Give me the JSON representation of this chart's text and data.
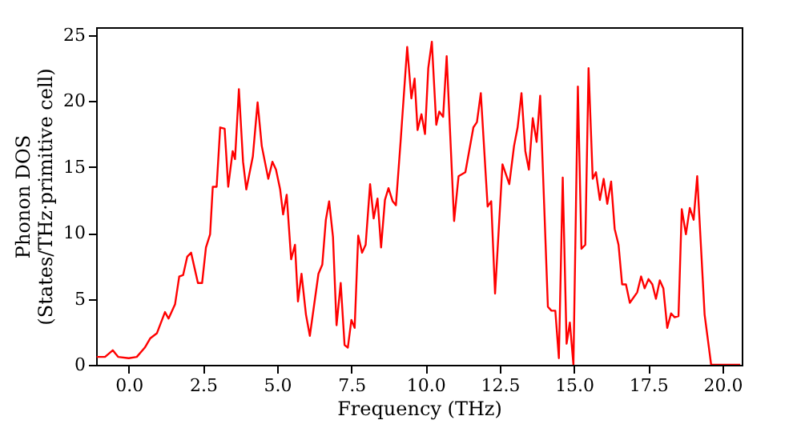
{
  "chart_data": {
    "type": "line",
    "xlabel": "Frequency (THz)",
    "ylabel": "Phonon DOS\n(States/THz·primitive cell)",
    "xlim": [
      -1.1,
      20.65
    ],
    "ylim": [
      0,
      25.6
    ],
    "xticks": [
      {
        "value": 0,
        "label": "0.0"
      },
      {
        "value": 2.5,
        "label": "2.5"
      },
      {
        "value": 5,
        "label": "5.0"
      },
      {
        "value": 7.5,
        "label": "7.5"
      },
      {
        "value": 10,
        "label": "10.0"
      },
      {
        "value": 12.5,
        "label": "12.5"
      },
      {
        "value": 15,
        "label": "15.0"
      },
      {
        "value": 17.5,
        "label": "17.5"
      },
      {
        "value": 20,
        "label": "20.0"
      }
    ],
    "yticks": [
      0,
      5,
      10,
      15,
      20,
      25
    ],
    "grid": false,
    "marker": "none",
    "line_style": "solid",
    "series": [
      {
        "color": "#ff0000",
        "x": [
          -1.08,
          -0.8,
          -0.54,
          -0.36,
          0,
          0.27,
          0.54,
          0.72,
          0.95,
          1.22,
          1.34,
          1.56,
          1.7,
          1.83,
          1.97,
          2.1,
          2.33,
          2.47,
          2.6,
          2.74,
          2.83,
          2.96,
          3.08,
          3.23,
          3.35,
          3.5,
          3.58,
          3.71,
          3.85,
          3.96,
          4.18,
          4.34,
          4.48,
          4.7,
          4.84,
          4.96,
          5.1,
          5.2,
          5.32,
          5.47,
          5.6,
          5.7,
          5.82,
          5.97,
          6.1,
          6.39,
          6.52,
          6.64,
          6.75,
          6.88,
          7.0,
          7.14,
          7.27,
          7.38,
          7.5,
          7.61,
          7.73,
          7.86,
          7.98,
          8.13,
          8.25,
          8.38,
          8.5,
          8.63,
          8.75,
          8.89,
          9.0,
          9.16,
          9.38,
          9.52,
          9.63,
          9.73,
          9.86,
          9.98,
          10.09,
          10.21,
          10.36,
          10.46,
          10.59,
          10.71,
          10.96,
          11.11,
          11.34,
          11.61,
          11.73,
          11.86,
          12.09,
          12.21,
          12.34,
          12.59,
          12.82,
          12.98,
          13.1,
          13.23,
          13.36,
          13.48,
          13.61,
          13.74,
          13.86,
          14.12,
          14.24,
          14.37,
          14.49,
          14.62,
          14.75,
          14.86,
          14.98,
          15.13,
          15.25,
          15.38,
          15.49,
          15.63,
          15.74,
          15.87,
          16.0,
          16.12,
          16.25,
          16.37,
          16.5,
          16.62,
          16.75,
          16.88,
          17.13,
          17.26,
          17.38,
          17.51,
          17.64,
          17.76,
          17.89,
          18.01,
          18.14,
          18.27,
          18.39,
          18.52,
          18.63,
          18.77,
          18.9,
          19.03,
          19.15,
          19.4,
          19.62,
          20.6
        ],
        "values": [
          0.6,
          0.6,
          1.1,
          0.6,
          0.5,
          0.6,
          1.3,
          2.0,
          2.4,
          4.0,
          3.5,
          4.6,
          6.7,
          6.8,
          8.2,
          8.5,
          6.2,
          6.2,
          8.9,
          9.9,
          13.5,
          13.5,
          18.0,
          17.9,
          13.5,
          16.2,
          15.6,
          20.9,
          15.4,
          13.3,
          15.8,
          19.9,
          16.6,
          14.1,
          15.4,
          14.8,
          13.3,
          11.4,
          12.9,
          8.0,
          9.1,
          4.8,
          6.9,
          3.8,
          2.2,
          6.9,
          7.6,
          11.0,
          12.4,
          9.7,
          3.0,
          6.2,
          1.5,
          1.3,
          3.4,
          2.8,
          9.8,
          8.5,
          9.1,
          13.7,
          11.1,
          12.6,
          8.9,
          12.5,
          13.4,
          12.4,
          12.1,
          17.0,
          24.1,
          20.2,
          21.7,
          17.8,
          19.0,
          17.5,
          22.5,
          24.5,
          18.2,
          19.2,
          18.8,
          23.4,
          10.9,
          14.3,
          14.6,
          18.0,
          18.4,
          20.6,
          12.0,
          12.4,
          5.4,
          15.2,
          13.7,
          16.6,
          18.0,
          20.6,
          16.2,
          14.8,
          18.7,
          16.9,
          20.4,
          4.4,
          4.1,
          4.1,
          0.5,
          14.2,
          1.6,
          3.2,
          0,
          21.1,
          8.8,
          9.1,
          22.5,
          14.1,
          14.6,
          12.5,
          14.1,
          12.2,
          13.9,
          10.3,
          9.1,
          6.1,
          6.1,
          4.7,
          5.5,
          6.7,
          5.8,
          6.5,
          6.1,
          5.0,
          6.4,
          5.8,
          2.8,
          3.9,
          3.6,
          3.7,
          11.8,
          9.9,
          11.9,
          11.0,
          14.3,
          3.8,
          0,
          0
        ]
      }
    ]
  }
}
